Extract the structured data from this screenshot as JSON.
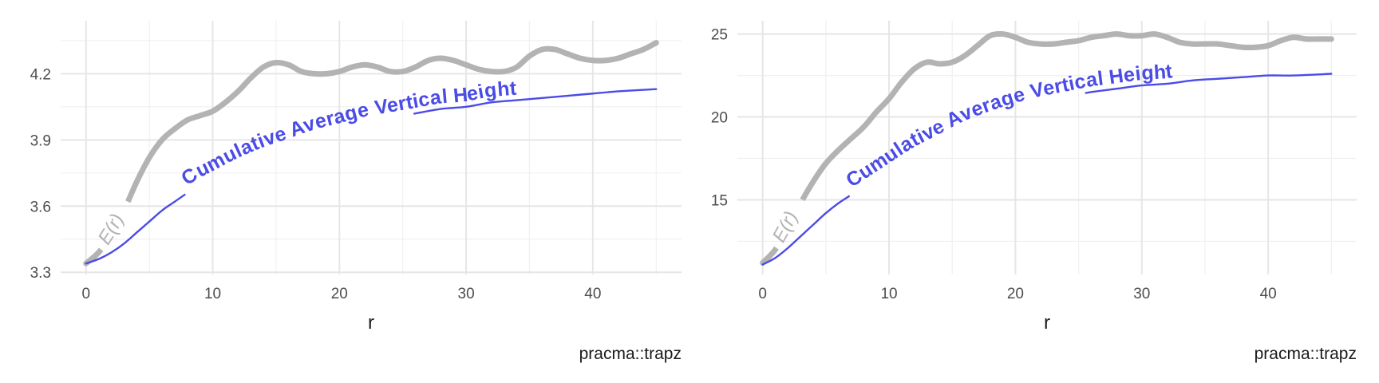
{
  "chart_data": [
    {
      "type": "line",
      "xlabel": "r",
      "ylabel": "",
      "caption": "pracma::trapz",
      "xlim": [
        -2,
        47
      ],
      "ylim": [
        3.29,
        4.44
      ],
      "x_ticks": [
        0,
        10,
        20,
        30,
        40
      ],
      "y_ticks": [
        3.3,
        3.6,
        3.9,
        4.2
      ],
      "y_tick_labels": [
        "3.3",
        "3.6",
        "3.9",
        "4.2"
      ],
      "grid": true,
      "series": [
        {
          "name": "E(r)",
          "color": "#b3b3b3",
          "points": [
            [
              0,
              3.34
            ],
            [
              1,
              3.39
            ],
            [
              2,
              3.47
            ],
            [
              3,
              3.58
            ],
            [
              4,
              3.71
            ],
            [
              5,
              3.82
            ],
            [
              6,
              3.9
            ],
            [
              7,
              3.95
            ],
            [
              8,
              3.99
            ],
            [
              9,
              4.01
            ],
            [
              10,
              4.03
            ],
            [
              11,
              4.07
            ],
            [
              12,
              4.12
            ],
            [
              13,
              4.18
            ],
            [
              14,
              4.23
            ],
            [
              15,
              4.25
            ],
            [
              16,
              4.24
            ],
            [
              17,
              4.21
            ],
            [
              18,
              4.2
            ],
            [
              19,
              4.2
            ],
            [
              20,
              4.21
            ],
            [
              21,
              4.23
            ],
            [
              22,
              4.24
            ],
            [
              23,
              4.23
            ],
            [
              24,
              4.21
            ],
            [
              25,
              4.21
            ],
            [
              26,
              4.23
            ],
            [
              27,
              4.26
            ],
            [
              28,
              4.27
            ],
            [
              29,
              4.26
            ],
            [
              30,
              4.24
            ],
            [
              31,
              4.22
            ],
            [
              32,
              4.21
            ],
            [
              33,
              4.21
            ],
            [
              34,
              4.23
            ],
            [
              35,
              4.28
            ],
            [
              36,
              4.31
            ],
            [
              37,
              4.31
            ],
            [
              38,
              4.29
            ],
            [
              39,
              4.27
            ],
            [
              40,
              4.26
            ],
            [
              41,
              4.26
            ],
            [
              42,
              4.27
            ],
            [
              43,
              4.29
            ],
            [
              44,
              4.31
            ],
            [
              45,
              4.34
            ]
          ]
        },
        {
          "name": "Cumulative Average Vertical Height",
          "color": "#4b4be6",
          "points": [
            [
              0,
              3.34
            ],
            [
              1,
              3.36
            ],
            [
              2,
              3.39
            ],
            [
              3,
              3.43
            ],
            [
              4,
              3.48
            ],
            [
              5,
              3.53
            ],
            [
              6,
              3.58
            ],
            [
              7,
              3.62
            ],
            [
              8,
              3.66
            ],
            [
              9,
              3.7
            ],
            [
              10,
              3.73
            ],
            [
              12,
              3.79
            ],
            [
              14,
              3.84
            ],
            [
              16,
              3.88
            ],
            [
              18,
              3.92
            ],
            [
              20,
              3.95
            ],
            [
              22,
              3.98
            ],
            [
              24,
              4.0
            ],
            [
              26,
              4.02
            ],
            [
              28,
              4.04
            ],
            [
              30,
              4.05
            ],
            [
              32,
              4.07
            ],
            [
              34,
              4.08
            ],
            [
              36,
              4.09
            ],
            [
              38,
              4.1
            ],
            [
              40,
              4.11
            ],
            [
              42,
              4.12
            ],
            [
              45,
              4.13
            ]
          ]
        }
      ]
    },
    {
      "type": "line",
      "xlabel": "r",
      "ylabel": "",
      "caption": "pracma::trapz",
      "xlim": [
        -2,
        47
      ],
      "ylim": [
        10.5,
        25.8
      ],
      "x_ticks": [
        0,
        10,
        20,
        30,
        40
      ],
      "y_ticks": [
        15,
        20,
        25
      ],
      "y_tick_labels": [
        "15",
        "20",
        "25"
      ],
      "grid": true,
      "series": [
        {
          "name": "E(r)",
          "color": "#b3b3b3",
          "points": [
            [
              0,
              11.2
            ],
            [
              1,
              12.0
            ],
            [
              2,
              13.3
            ],
            [
              3,
              14.8
            ],
            [
              4,
              16.1
            ],
            [
              5,
              17.2
            ],
            [
              6,
              18.0
            ],
            [
              7,
              18.7
            ],
            [
              8,
              19.4
            ],
            [
              9,
              20.3
            ],
            [
              10,
              21.1
            ],
            [
              11,
              22.1
            ],
            [
              12,
              22.9
            ],
            [
              13,
              23.3
            ],
            [
              14,
              23.2
            ],
            [
              15,
              23.3
            ],
            [
              16,
              23.7
            ],
            [
              17,
              24.3
            ],
            [
              18,
              24.9
            ],
            [
              19,
              25.0
            ],
            [
              20,
              24.8
            ],
            [
              21,
              24.5
            ],
            [
              22,
              24.4
            ],
            [
              23,
              24.4
            ],
            [
              24,
              24.5
            ],
            [
              25,
              24.6
            ],
            [
              26,
              24.8
            ],
            [
              27,
              24.9
            ],
            [
              28,
              25.0
            ],
            [
              29,
              24.9
            ],
            [
              30,
              24.9
            ],
            [
              31,
              25.0
            ],
            [
              32,
              24.8
            ],
            [
              33,
              24.5
            ],
            [
              34,
              24.4
            ],
            [
              35,
              24.4
            ],
            [
              36,
              24.4
            ],
            [
              37,
              24.3
            ],
            [
              38,
              24.2
            ],
            [
              39,
              24.2
            ],
            [
              40,
              24.3
            ],
            [
              41,
              24.6
            ],
            [
              42,
              24.8
            ],
            [
              43,
              24.7
            ],
            [
              44,
              24.7
            ],
            [
              45,
              24.7
            ]
          ]
        },
        {
          "name": "Cumulative Average Vertical Height",
          "color": "#4b4be6",
          "points": [
            [
              0,
              11.1
            ],
            [
              1,
              11.5
            ],
            [
              2,
              12.1
            ],
            [
              3,
              12.8
            ],
            [
              4,
              13.5
            ],
            [
              5,
              14.2
            ],
            [
              6,
              14.8
            ],
            [
              7,
              15.3
            ],
            [
              8,
              15.8
            ],
            [
              9,
              16.3
            ],
            [
              10,
              16.8
            ],
            [
              12,
              17.8
            ],
            [
              14,
              18.6
            ],
            [
              16,
              19.4
            ],
            [
              18,
              20.0
            ],
            [
              20,
              20.5
            ],
            [
              22,
              20.9
            ],
            [
              24,
              21.2
            ],
            [
              26,
              21.5
            ],
            [
              28,
              21.7
            ],
            [
              30,
              21.9
            ],
            [
              32,
              22.0
            ],
            [
              34,
              22.2
            ],
            [
              36,
              22.3
            ],
            [
              38,
              22.4
            ],
            [
              40,
              22.5
            ],
            [
              42,
              22.5
            ],
            [
              45,
              22.6
            ]
          ]
        }
      ]
    }
  ]
}
